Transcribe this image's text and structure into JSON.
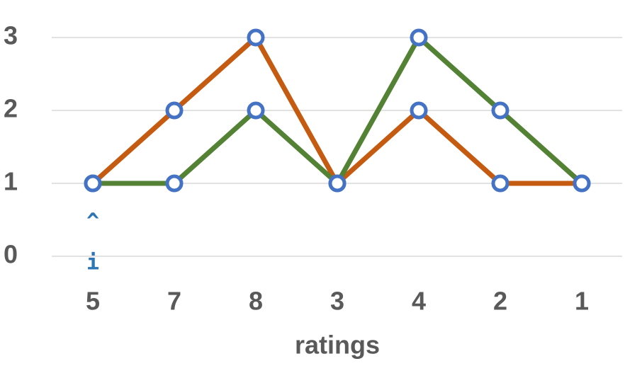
{
  "chart_data": {
    "type": "line",
    "x_label": "ratings",
    "categories": [
      "5",
      "7",
      "8",
      "3",
      "4",
      "2",
      "1"
    ],
    "series": [
      {
        "color": "#c55a11",
        "values": [
          1,
          2,
          3,
          1,
          2,
          1,
          1
        ]
      },
      {
        "color": "#548235",
        "values": [
          1,
          1,
          2,
          1,
          3,
          2,
          1
        ]
      }
    ],
    "marker_color": "#4472c4",
    "annotations": [
      "^",
      "i"
    ],
    "annotation_color": "#2e75b6",
    "ylim": [
      0,
      3
    ],
    "yticks": [
      0,
      1,
      2,
      3
    ],
    "grid": true
  }
}
